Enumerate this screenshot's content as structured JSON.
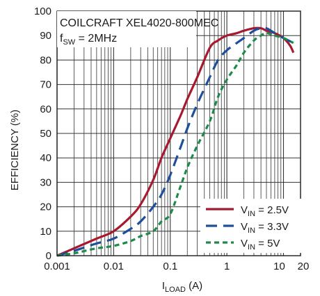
{
  "chart_data": {
    "type": "line",
    "title": "",
    "annotation": {
      "line1": "COILCRAFT XEL4020-800MEC",
      "line2_prefix": "f",
      "line2_sub": "SW",
      "line2_suffix": " = 2MHz"
    },
    "xlabel": {
      "prefix": "I",
      "sub": "LOAD",
      "suffix": " (A)"
    },
    "ylabel": "EFFICIENCY (%)",
    "x_scale": "log",
    "xlim": [
      0.001,
      20
    ],
    "ylim": [
      0,
      100
    ],
    "x_ticks": [
      {
        "value": 0.001,
        "label": "0.001"
      },
      {
        "value": 0.01,
        "label": "0.01"
      },
      {
        "value": 0.1,
        "label": "0.1"
      },
      {
        "value": 1,
        "label": "1"
      },
      {
        "value": 10,
        "label": "10"
      },
      {
        "value": 20,
        "label": "20"
      }
    ],
    "y_ticks": [
      0,
      10,
      20,
      30,
      40,
      50,
      60,
      70,
      80,
      90,
      100
    ],
    "grid": true,
    "legend_position": "bottom-right",
    "series": [
      {
        "name_prefix": "V",
        "name_sub": "IN",
        "name_suffix": " = 2.5V",
        "color": "#a6192e",
        "dash": "solid",
        "points": [
          [
            0.001,
            0
          ],
          [
            0.002,
            3
          ],
          [
            0.005,
            7
          ],
          [
            0.01,
            10
          ],
          [
            0.02,
            16
          ],
          [
            0.03,
            21
          ],
          [
            0.05,
            31
          ],
          [
            0.07,
            40
          ],
          [
            0.1,
            48
          ],
          [
            0.15,
            57
          ],
          [
            0.2,
            64
          ],
          [
            0.3,
            73
          ],
          [
            0.5,
            85
          ],
          [
            0.7,
            88
          ],
          [
            1,
            90
          ],
          [
            1.5,
            91
          ],
          [
            2,
            92
          ],
          [
            3,
            93
          ],
          [
            4,
            93
          ],
          [
            5,
            92
          ],
          [
            7,
            91
          ],
          [
            10,
            89
          ],
          [
            13,
            86
          ],
          [
            15,
            83
          ]
        ]
      },
      {
        "name_prefix": "V",
        "name_sub": "IN",
        "name_suffix": " = 3.3V",
        "color": "#1f4e9c",
        "dash": "long-dash",
        "points": [
          [
            0.001,
            0
          ],
          [
            0.002,
            2
          ],
          [
            0.005,
            5
          ],
          [
            0.01,
            7
          ],
          [
            0.02,
            11
          ],
          [
            0.03,
            14
          ],
          [
            0.05,
            20
          ],
          [
            0.07,
            25
          ],
          [
            0.1,
            33
          ],
          [
            0.15,
            44
          ],
          [
            0.2,
            52
          ],
          [
            0.3,
            62
          ],
          [
            0.5,
            73
          ],
          [
            0.7,
            80
          ],
          [
            1,
            84
          ],
          [
            1.5,
            87
          ],
          [
            2,
            89
          ],
          [
            3,
            92
          ],
          [
            4,
            93
          ],
          [
            5,
            93
          ],
          [
            7,
            91
          ],
          [
            10,
            89
          ],
          [
            15,
            87
          ]
        ]
      },
      {
        "name_prefix": "V",
        "name_sub": "IN",
        "name_suffix": " = 5V",
        "color": "#1e8a4a",
        "dash": "short-dash",
        "points": [
          [
            0.001,
            0
          ],
          [
            0.002,
            1
          ],
          [
            0.005,
            3
          ],
          [
            0.01,
            4
          ],
          [
            0.02,
            6
          ],
          [
            0.03,
            8
          ],
          [
            0.05,
            10
          ],
          [
            0.07,
            14
          ],
          [
            0.1,
            17
          ],
          [
            0.15,
            28
          ],
          [
            0.2,
            36
          ],
          [
            0.3,
            45
          ],
          [
            0.5,
            55
          ],
          [
            0.7,
            65
          ],
          [
            1,
            72
          ],
          [
            1.5,
            78
          ],
          [
            2,
            83
          ],
          [
            3,
            88
          ],
          [
            4,
            90
          ],
          [
            5,
            91
          ],
          [
            7,
            90
          ],
          [
            10,
            89
          ],
          [
            15,
            87
          ]
        ]
      }
    ]
  }
}
